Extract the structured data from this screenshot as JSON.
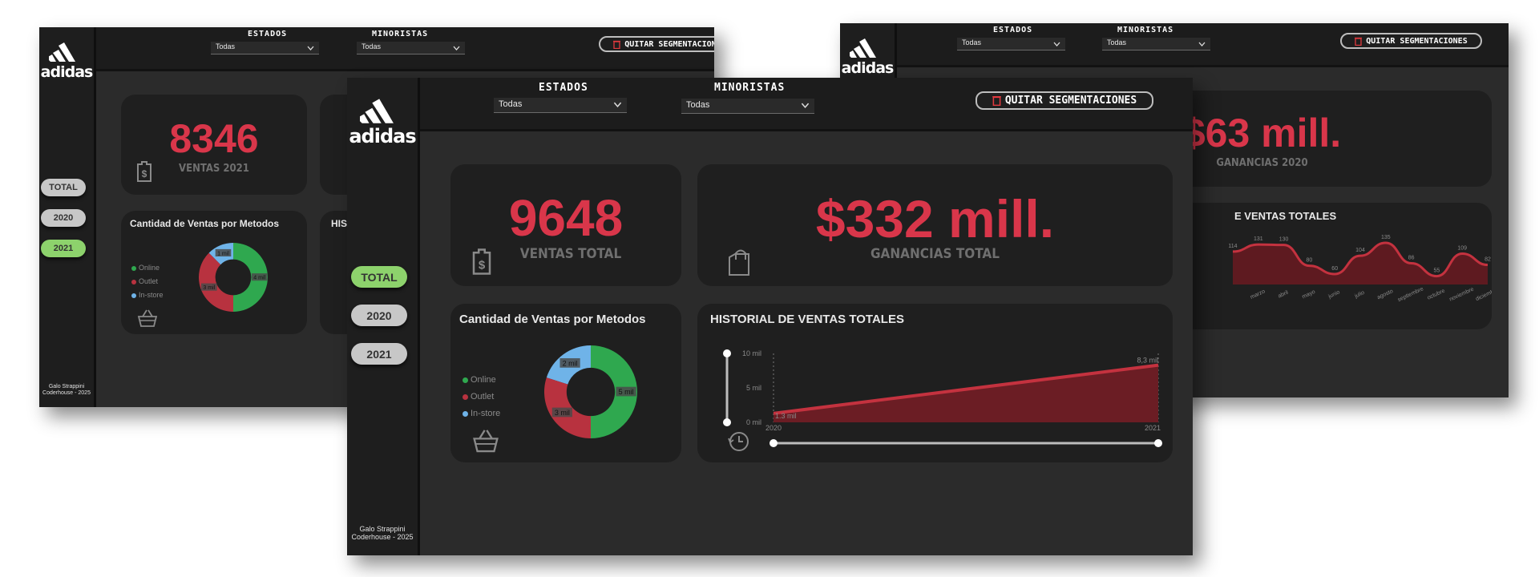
{
  "brand": {
    "logo_text": "adidas"
  },
  "filters": {
    "estados_label": "ESTADOS",
    "estados_value": "Todas",
    "minoristas_label": "MINORISTAS",
    "minoristas_value": "Todas",
    "clear_label": "QUITAR SEGMENTACIONES"
  },
  "year_buttons": [
    "TOTAL",
    "2020",
    "2021"
  ],
  "credit": {
    "line1": "Galo Strappini",
    "line2": "Coderhouse - 2025"
  },
  "colors": {
    "accent_red": "#d9364a",
    "online": "#2fa84f",
    "outlet": "#b8323f",
    "in_store": "#6fb3e8",
    "active_pill": "#8dd26c"
  },
  "left_view": {
    "active_year": "2021",
    "kpi_ventas_value": "8346",
    "kpi_ventas_label": "VENTAS 2021",
    "donut_title": "Cantidad de Ventas por Metodos",
    "history_title_fragment": "HIS"
  },
  "front_view": {
    "active_year": "TOTAL",
    "kpi_ventas_value": "9648",
    "kpi_ventas_label": "VENTAS TOTAL",
    "kpi_ganancias_value": "$332 mill.",
    "kpi_ganancias_label": "GANANCIAS TOTAL",
    "donut_title": "Cantidad de Ventas por Metodos",
    "history_title": "HISTORIAL DE VENTAS TOTALES",
    "y_ticks": [
      "10 mil",
      "5 mil",
      "0 mil"
    ],
    "x_ticks": [
      "2020",
      "2021"
    ],
    "start_label": "1.3 mil",
    "end_label": "8,3 mil"
  },
  "right_view": {
    "kpi_ganancias_value": "$63 mill.",
    "kpi_ganancias_label": "GANANCIAS 2020",
    "history_title_fragment": "E VENTAS TOTALES"
  },
  "chart_data": [
    {
      "type": "pie",
      "title": "Cantidad de Ventas por Metodos",
      "categories": [
        "Online",
        "Outlet",
        "In-store"
      ],
      "values": [
        4,
        3,
        1
      ],
      "slice_labels": [
        "4 mil",
        "3 mil",
        "1 mil"
      ],
      "note": "left view (2021)"
    },
    {
      "type": "pie",
      "title": "Cantidad de Ventas por Metodos",
      "categories": [
        "Online",
        "Outlet",
        "In-store"
      ],
      "values": [
        5,
        3,
        2
      ],
      "slice_labels": [
        "5 mil",
        "3 mil",
        "2 mil"
      ],
      "note": "front view (TOTAL)"
    },
    {
      "type": "area",
      "title": "HISTORIAL DE VENTAS TOTALES",
      "x": [
        "2020",
        "2021"
      ],
      "values": [
        1.3,
        8.3
      ],
      "ylim": [
        0,
        10
      ],
      "y_unit": "mil",
      "grid": false
    },
    {
      "type": "area",
      "title": "E VENTAS TOTALES",
      "x": [
        "",
        "marzo",
        "abril",
        "mayo",
        "junio",
        "julio",
        "agosto",
        "septiembre",
        "octubre",
        "noviembre",
        "diciembre"
      ],
      "values": [
        114,
        131,
        130,
        80,
        60,
        104,
        135,
        86,
        55,
        109,
        82
      ],
      "labels": [
        "114",
        "131",
        "130",
        "80",
        "60",
        "104",
        "135",
        "86",
        "55",
        "109",
        "82"
      ]
    }
  ]
}
